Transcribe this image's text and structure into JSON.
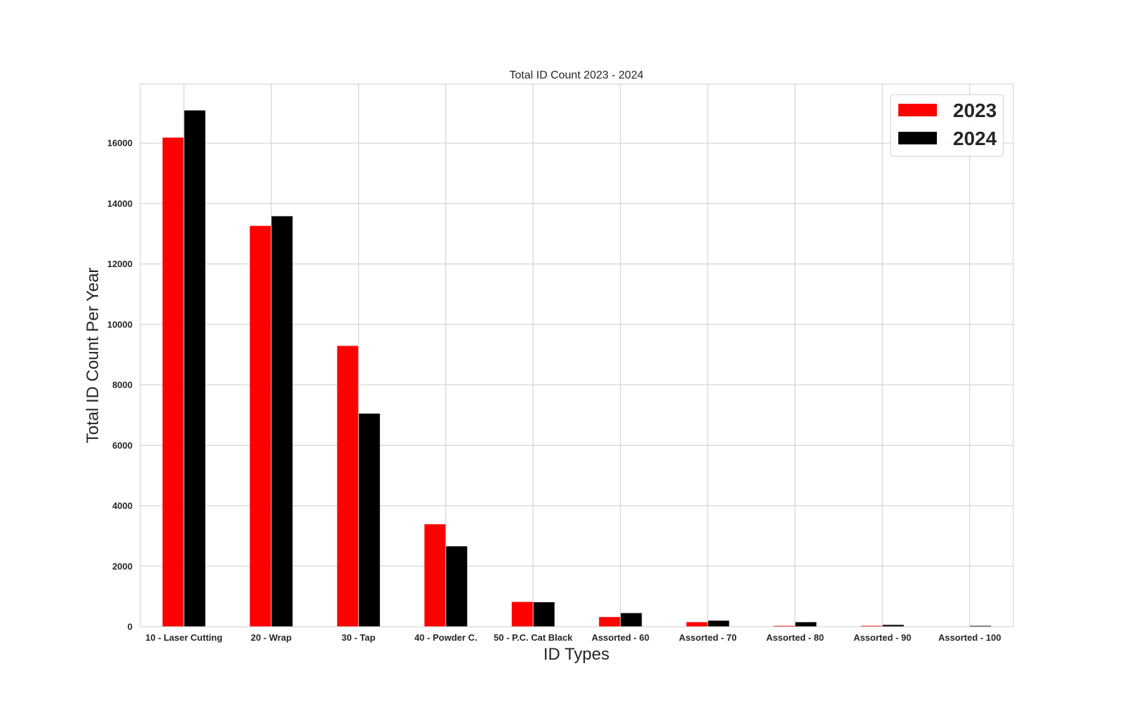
{
  "chart_data": {
    "type": "bar",
    "title": "Total ID Count 2023 - 2024",
    "xlabel": "ID Types",
    "ylabel": "Total ID Count Per Year",
    "categories": [
      "10 - Laser Cutting",
      "20 - Wrap",
      "30 - Tap",
      "40 - Powder C.",
      "50 - P.C. Cat Black",
      "Assorted - 60",
      "Assorted - 70",
      "Assorted - 80",
      "Assorted - 90",
      "Assorted - 100"
    ],
    "series": [
      {
        "name": "2023",
        "color": "#ff0000",
        "values": [
          16180,
          13260,
          9290,
          3390,
          820,
          320,
          150,
          30,
          30,
          0
        ]
      },
      {
        "name": "2024",
        "color": "#000000",
        "values": [
          17080,
          13580,
          7050,
          2660,
          810,
          450,
          200,
          150,
          60,
          30
        ]
      }
    ],
    "ylim": [
      0,
      17950
    ],
    "yticks": [
      0,
      2000,
      4000,
      6000,
      8000,
      10000,
      12000,
      14000,
      16000
    ],
    "grid": true,
    "legend_position": "top-right"
  }
}
